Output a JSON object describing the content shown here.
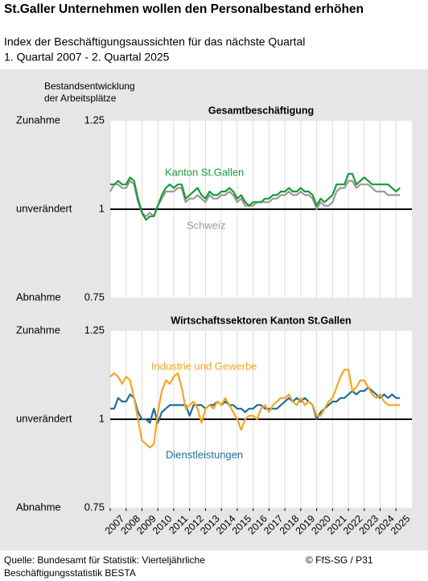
{
  "title": "St.Galler Unternehmen wollen den Personalbestand erhöhen",
  "subtitle": [
    "Index der Beschäftigungsaussichten für das nächste Quartal",
    "1. Quartal 2007 - 2. Quartal 2025"
  ],
  "y_label": [
    "Bestandsentwicklung",
    "der Arbeitsplätze"
  ],
  "source": [
    "Quelle: Bundesamt für Statistik: Vierteljährliche",
    "Beschäftigungsstatistik BESTA"
  ],
  "credit": "© FfS-SG / P31",
  "chart_data": [
    {
      "type": "line",
      "title": "Gesamtbeschäftigung",
      "x": [
        2007,
        2007.25,
        2007.5,
        2007.75,
        2008,
        2008.25,
        2008.5,
        2008.75,
        2009,
        2009.25,
        2009.5,
        2009.75,
        2010,
        2010.25,
        2010.5,
        2010.75,
        2011,
        2011.25,
        2011.5,
        2011.75,
        2012,
        2012.25,
        2012.5,
        2012.75,
        2013,
        2013.25,
        2013.5,
        2013.75,
        2014,
        2014.25,
        2014.5,
        2014.75,
        2015,
        2015.25,
        2015.5,
        2015.75,
        2016,
        2016.25,
        2016.5,
        2016.75,
        2017,
        2017.25,
        2017.5,
        2017.75,
        2018,
        2018.25,
        2018.5,
        2018.75,
        2019,
        2019.25,
        2019.5,
        2019.75,
        2020,
        2020.25,
        2020.5,
        2020.75,
        2021,
        2021.25,
        2021.5,
        2021.75,
        2022,
        2022.25,
        2022.5,
        2022.75,
        2023,
        2023.25,
        2023.5,
        2023.75,
        2024,
        2024.25,
        2024.5,
        2024.75,
        2025,
        2025.25
      ],
      "xlim": [
        2007,
        2026
      ],
      "xticks": [
        2007,
        2008,
        2009,
        2010,
        2011,
        2012,
        2013,
        2014,
        2015,
        2016,
        2017,
        2018,
        2019,
        2020,
        2021,
        2022,
        2023,
        2024,
        2025
      ],
      "ylim": [
        0.75,
        1.25
      ],
      "yticks": [
        0.75,
        1,
        1.25
      ],
      "y_level_labels": [
        "Abnahme",
        "unverändert",
        "Zunahme"
      ],
      "reference_line": 1,
      "series": [
        {
          "name": "Kanton St.Gallen",
          "color": "#1a9a3a",
          "values": [
            1.07,
            1.07,
            1.08,
            1.07,
            1.07,
            1.09,
            1.08,
            1.03,
            0.99,
            0.97,
            0.98,
            0.98,
            1.01,
            1.04,
            1.06,
            1.07,
            1.06,
            1.07,
            1.07,
            1.03,
            1.04,
            1.05,
            1.06,
            1.04,
            1.03,
            1.05,
            1.04,
            1.04,
            1.05,
            1.05,
            1.06,
            1.05,
            1.03,
            1.04,
            1.02,
            1.01,
            1.02,
            1.02,
            1.02,
            1.03,
            1.03,
            1.04,
            1.04,
            1.05,
            1.05,
            1.06,
            1.05,
            1.05,
            1.06,
            1.05,
            1.05,
            1.04,
            1.01,
            1.03,
            1.02,
            1.03,
            1.04,
            1.07,
            1.07,
            1.07,
            1.1,
            1.1,
            1.07,
            1.08,
            1.09,
            1.08,
            1.07,
            1.07,
            1.07,
            1.07,
            1.07,
            1.06,
            1.05,
            1.06
          ]
        },
        {
          "name": "Schweiz",
          "color": "#9a9a9a",
          "values": [
            1.05,
            1.07,
            1.07,
            1.06,
            1.06,
            1.08,
            1.07,
            1.02,
            0.99,
            0.98,
            0.99,
            0.98,
            1.01,
            1.03,
            1.05,
            1.05,
            1.05,
            1.06,
            1.06,
            1.02,
            1.03,
            1.03,
            1.04,
            1.03,
            1.02,
            1.04,
            1.03,
            1.03,
            1.04,
            1.04,
            1.05,
            1.04,
            1.02,
            1.03,
            1.01,
            1.01,
            1.01,
            1.02,
            1.02,
            1.02,
            1.02,
            1.03,
            1.03,
            1.04,
            1.04,
            1.05,
            1.04,
            1.04,
            1.05,
            1.04,
            1.04,
            1.03,
            1.0,
            1.02,
            1.01,
            1.01,
            1.02,
            1.05,
            1.06,
            1.06,
            1.08,
            1.08,
            1.06,
            1.07,
            1.07,
            1.07,
            1.06,
            1.05,
            1.05,
            1.05,
            1.04,
            1.04,
            1.04,
            1.04
          ]
        }
      ]
    },
    {
      "type": "line",
      "title": "Wirtschaftssektoren Kanton St.Gallen",
      "x": [
        2007,
        2007.25,
        2007.5,
        2007.75,
        2008,
        2008.25,
        2008.5,
        2008.75,
        2009,
        2009.25,
        2009.5,
        2009.75,
        2010,
        2010.25,
        2010.5,
        2010.75,
        2011,
        2011.25,
        2011.5,
        2011.75,
        2012,
        2012.25,
        2012.5,
        2012.75,
        2013,
        2013.25,
        2013.5,
        2013.75,
        2014,
        2014.25,
        2014.5,
        2014.75,
        2015,
        2015.25,
        2015.5,
        2015.75,
        2016,
        2016.25,
        2016.5,
        2016.75,
        2017,
        2017.25,
        2017.5,
        2017.75,
        2018,
        2018.25,
        2018.5,
        2018.75,
        2019,
        2019.25,
        2019.5,
        2019.75,
        2020,
        2020.25,
        2020.5,
        2020.75,
        2021,
        2021.25,
        2021.5,
        2021.75,
        2022,
        2022.25,
        2022.5,
        2022.75,
        2023,
        2023.25,
        2023.5,
        2023.75,
        2024,
        2024.25,
        2024.5,
        2024.75,
        2025,
        2025.25
      ],
      "xlim": [
        2007,
        2026
      ],
      "xticks": [
        2007,
        2008,
        2009,
        2010,
        2011,
        2012,
        2013,
        2014,
        2015,
        2016,
        2017,
        2018,
        2019,
        2020,
        2021,
        2022,
        2023,
        2024,
        2025
      ],
      "ylim": [
        0.75,
        1.25
      ],
      "yticks": [
        0.75,
        1,
        1.25
      ],
      "y_level_labels": [
        "Abnahme",
        "unverändert",
        "Zunahme"
      ],
      "reference_line": 1,
      "series": [
        {
          "name": "Industrie und Gewerbe",
          "color": "#f5a623",
          "values": [
            1.12,
            1.13,
            1.12,
            1.1,
            1.12,
            1.11,
            1.06,
            1.0,
            0.94,
            0.93,
            0.92,
            0.93,
            1.02,
            1.08,
            1.11,
            1.1,
            1.12,
            1.13,
            1.09,
            1.03,
            1.04,
            1.05,
            1.03,
            0.99,
            1.03,
            1.04,
            1.03,
            1.05,
            1.04,
            1.06,
            1.04,
            1.02,
            1.0,
            0.97,
            1.0,
            1.01,
            1.01,
            1.0,
            1.03,
            1.04,
            1.02,
            1.04,
            1.05,
            1.06,
            1.06,
            1.07,
            1.05,
            1.04,
            1.06,
            1.04,
            1.05,
            1.04,
            1.01,
            1.01,
            1.03,
            1.05,
            1.06,
            1.09,
            1.12,
            1.14,
            1.14,
            1.08,
            1.09,
            1.11,
            1.11,
            1.09,
            1.07,
            1.06,
            1.07,
            1.05,
            1.04,
            1.04,
            1.04,
            1.04
          ]
        },
        {
          "name": "Dienstleistungen",
          "color": "#1f6e99",
          "values": [
            1.03,
            1.03,
            1.06,
            1.05,
            1.05,
            1.07,
            1.06,
            1.02,
            1.0,
            1.0,
            0.99,
            1.03,
            0.99,
            1.02,
            1.03,
            1.04,
            1.04,
            1.04,
            1.04,
            1.04,
            1.01,
            1.04,
            1.04,
            1.04,
            1.03,
            1.04,
            1.04,
            1.05,
            1.04,
            1.05,
            1.04,
            1.04,
            1.03,
            1.03,
            1.02,
            1.03,
            1.03,
            1.04,
            1.04,
            1.03,
            1.03,
            1.03,
            1.03,
            1.04,
            1.05,
            1.06,
            1.05,
            1.06,
            1.05,
            1.06,
            1.05,
            1.04,
            1.0,
            1.02,
            1.03,
            1.04,
            1.05,
            1.05,
            1.06,
            1.06,
            1.07,
            1.08,
            1.07,
            1.08,
            1.08,
            1.09,
            1.08,
            1.07,
            1.06,
            1.07,
            1.06,
            1.07,
            1.06,
            1.06
          ]
        }
      ]
    }
  ]
}
